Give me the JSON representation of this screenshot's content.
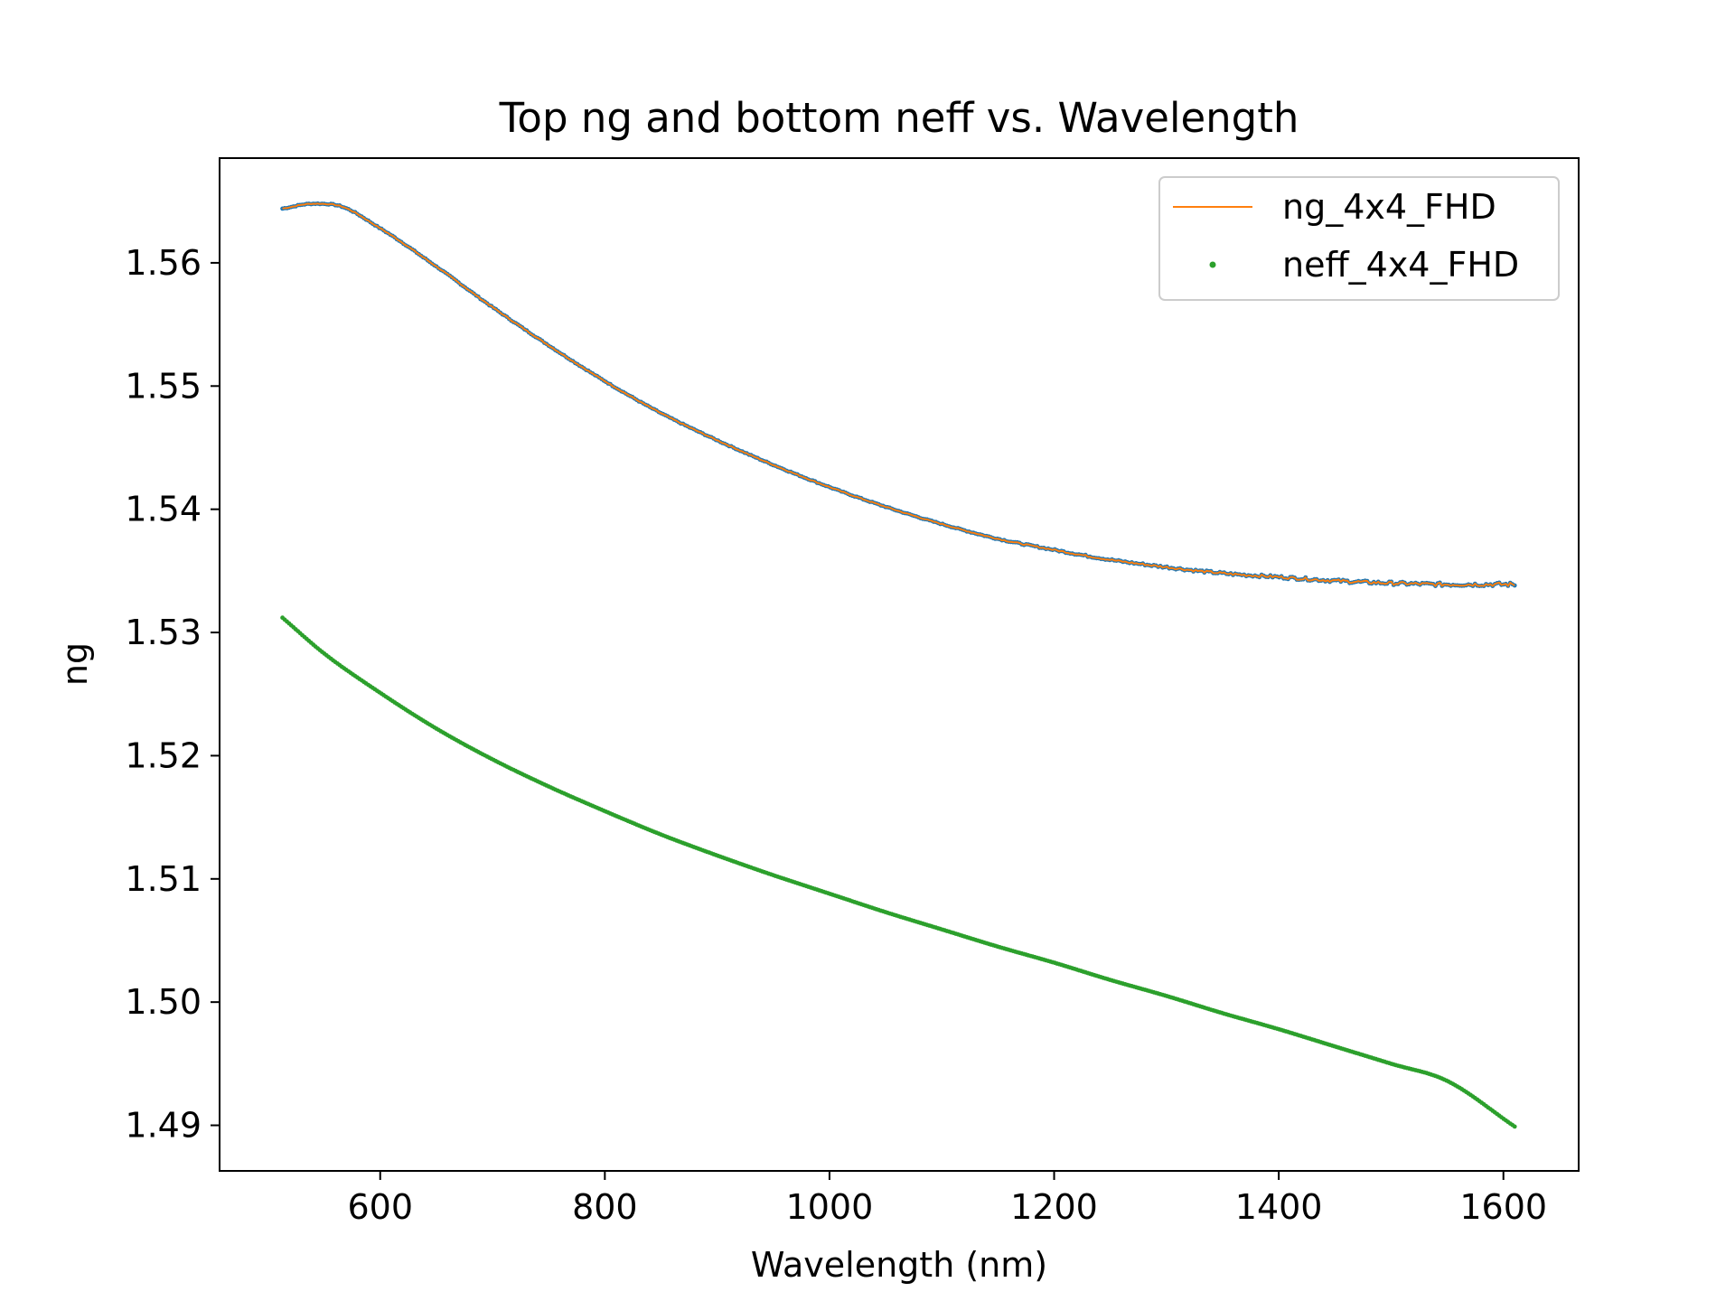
{
  "chart_data": {
    "type": "line",
    "title": "Top ng and bottom neff vs. Wavelength",
    "xlabel": "Wavelength (nm)",
    "ylabel": "ng",
    "xlim": [
      457,
      1667
    ],
    "ylim": [
      1.4863,
      1.5685
    ],
    "xticks": [
      600,
      800,
      1000,
      1200,
      1400,
      1600
    ],
    "xtick_labels": [
      "600",
      "800",
      "1000",
      "1200",
      "1400",
      "1600"
    ],
    "yticks": [
      1.49,
      1.5,
      1.51,
      1.52,
      1.53,
      1.54,
      1.55,
      1.56
    ],
    "ytick_labels": [
      "1.49",
      "1.50",
      "1.51",
      "1.52",
      "1.53",
      "1.54",
      "1.55",
      "1.56"
    ],
    "grid": false,
    "legend_position": "top-right",
    "legend": [
      "ng_4x4_FHD",
      "neff_4x4_FHD"
    ],
    "colors": {
      "ng_dots": "#1f77b4",
      "ng_line": "#ff7f0e",
      "neff": "#2ca02c"
    },
    "series": [
      {
        "name": "ng_4x4_FHD",
        "style": "line over blue points",
        "x": [
          513,
          540,
          560,
          600,
          650,
          700,
          750,
          800,
          850,
          900,
          950,
          1000,
          1050,
          1100,
          1150,
          1200,
          1250,
          1300,
          1350,
          1400,
          1450,
          1500,
          1550,
          1610
        ],
        "y": [
          1.5644,
          1.5648,
          1.5647,
          1.5628,
          1.5597,
          1.5564,
          1.5533,
          1.5504,
          1.5478,
          1.5456,
          1.5436,
          1.5418,
          1.5402,
          1.5388,
          1.5376,
          1.5367,
          1.5359,
          1.5353,
          1.5348,
          1.5345,
          1.5342,
          1.534,
          1.5339,
          1.5339
        ]
      },
      {
        "name": "neff_4x4_FHD",
        "style": "points",
        "x": [
          513,
          550,
          600,
          650,
          700,
          750,
          800,
          850,
          900,
          950,
          1000,
          1050,
          1100,
          1150,
          1200,
          1250,
          1300,
          1350,
          1400,
          1450,
          1500,
          1550,
          1610
        ],
        "y": [
          1.5312,
          1.5283,
          1.5251,
          1.5222,
          1.5197,
          1.5175,
          1.5155,
          1.5136,
          1.5119,
          1.5103,
          1.5088,
          1.5073,
          1.5059,
          1.5045,
          1.5032,
          1.5018,
          1.5005,
          1.4991,
          1.4978,
          1.4964,
          1.495,
          1.4936,
          1.4899
        ]
      }
    ]
  }
}
